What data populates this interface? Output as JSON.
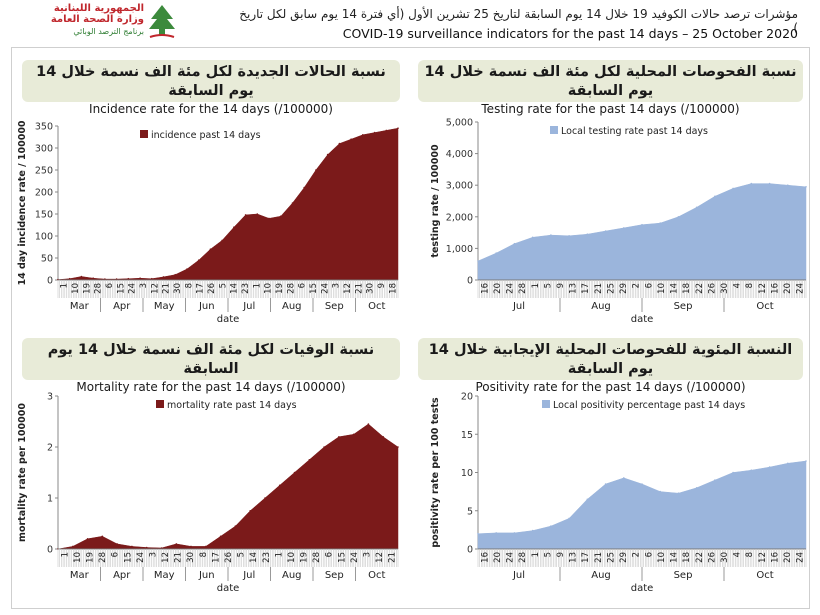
{
  "header": {
    "logo_line1": "الجمهورية اللبنانية",
    "logo_line2": "وزارة الصحة العامة",
    "logo_line3": "برنامج الترصد الوبائي",
    "title_ar": "مؤشرات ترصد حالات الكوفيد 19 خلال 14 يوم السابقة لتاريخ 25 تشرين الأول (أي فترة 14 يوم سابق لكل تاريخ )",
    "title_en": "COVID-19 surveillance indicators for the past 14 days – 25 October 2020"
  },
  "panels": {
    "incidence": {
      "title_ar": "نسبة الحالات الجديدة لكل مئة الف نسمة خلال 14 يوم السابقة",
      "title_en": "Incidence rate for the 14 days  (/100000)"
    },
    "testing": {
      "title_ar": "نسبة الفحوصات المحلية لكل مئة الف نسمة خلال 14 يوم السابقة",
      "title_en": "Testing rate for the past 14 days (/100000)"
    },
    "mortality": {
      "title_ar": "نسبة الوفيات لكل مئة الف نسمة خلال 14 يوم السابقة",
      "title_en": "Mortality rate for the past 14 days (/100000)"
    },
    "positivity": {
      "title_ar": "النسبة المئوية للفحوصات المحلية الإيجابية خلال 14 يوم السابقة",
      "title_en": "Positivity rate for the past 14 days (/100000)"
    }
  },
  "chart_data": [
    {
      "id": "incidence",
      "type": "area",
      "color": "#7b1a1a",
      "ylabel": "14 day incidence rate / 100000",
      "xlabel": "date",
      "legend": "incidence past 14 days",
      "legend_position": "top-left",
      "ylim": [
        0,
        350
      ],
      "yticks": [
        "0",
        "50",
        "100",
        "150",
        "200",
        "250",
        "300",
        "350"
      ],
      "tick_labels": [
        "1",
        "10",
        "19",
        "28",
        "6",
        "15",
        "24",
        "3",
        "12",
        "21",
        "30",
        "8",
        "17",
        "26",
        "5",
        "14",
        "23",
        "1",
        "10",
        "19",
        "28",
        "6",
        "15",
        "24",
        "3",
        "12",
        "21",
        "30",
        "9",
        "18"
      ],
      "months": [
        "Mar",
        "Apr",
        "May",
        "Jun",
        "Jul",
        "Aug",
        "Sep",
        "Oct"
      ],
      "x": [
        "Mar 1",
        "Mar 15",
        "Mar 28",
        "Apr 10",
        "Apr 24",
        "May 8",
        "May 22",
        "Jun 5",
        "Jun 19",
        "Jul 1",
        "Jul 10",
        "Jul 20",
        "Jul 28",
        "Aug 5",
        "Aug 10",
        "Aug 15",
        "Aug 20",
        "Aug 25",
        "Aug 31",
        "Sep 5",
        "Sep 10",
        "Sep 15",
        "Sep 20",
        "Sep 25",
        "Oct 1",
        "Oct 5",
        "Oct 10",
        "Oct 15",
        "Oct 20",
        "Oct 25"
      ],
      "values": [
        1,
        3,
        8,
        4,
        2,
        2,
        3,
        4,
        3,
        7,
        12,
        25,
        45,
        70,
        90,
        120,
        148,
        150,
        140,
        145,
        175,
        210,
        250,
        285,
        310,
        320,
        330,
        335,
        340,
        345
      ]
    },
    {
      "id": "testing",
      "type": "area",
      "color": "#9bb5dc",
      "ylabel": "testing rate / 100000",
      "xlabel": "date",
      "legend": "Local testing rate past 14 days",
      "legend_position": "top-left",
      "ylim": [
        0,
        5000
      ],
      "yticks": [
        "0",
        "1,000",
        "2,000",
        "3,000",
        "4,000",
        "5,000"
      ],
      "tick_labels": [
        "16",
        "20",
        "24",
        "28",
        "1",
        "5",
        "9",
        "13",
        "17",
        "21",
        "25",
        "29",
        "2",
        "6",
        "10",
        "14",
        "18",
        "22",
        "26",
        "30",
        "4",
        "8",
        "12",
        "16",
        "20",
        "24"
      ],
      "months": [
        "Jul",
        "Aug",
        "Sep",
        "Oct"
      ],
      "x": [
        "Jul 16",
        "Jul 22",
        "Jul 28",
        "Aug 3",
        "Aug 9",
        "Aug 15",
        "Aug 21",
        "Aug 27",
        "Sep 2",
        "Sep 8",
        "Sep 14",
        "Sep 20",
        "Sep 26",
        "Oct 2",
        "Oct 8",
        "Oct 12",
        "Oct 16",
        "Oct 20",
        "Oct 24"
      ],
      "values": [
        600,
        850,
        1150,
        1350,
        1420,
        1400,
        1450,
        1550,
        1650,
        1750,
        1800,
        2000,
        2300,
        2650,
        2900,
        3050,
        3050,
        3000,
        2950
      ]
    },
    {
      "id": "mortality",
      "type": "area",
      "color": "#7b1a1a",
      "ylabel": "mortality rate per 100000",
      "xlabel": "date",
      "legend": "mortality rate past 14 days",
      "legend_position": "top-left",
      "ylim": [
        0,
        3
      ],
      "yticks": [
        "0",
        "1",
        "2",
        "3"
      ],
      "tick_labels": [
        "1",
        "10",
        "19",
        "28",
        "6",
        "15",
        "24",
        "3",
        "12",
        "21",
        "30",
        "8",
        "17",
        "26",
        "5",
        "14",
        "23",
        "1",
        "10",
        "19",
        "28",
        "6",
        "15",
        "24",
        "3",
        "12",
        "21"
      ],
      "months": [
        "Mar",
        "Apr",
        "May",
        "Jun",
        "Jul",
        "Aug",
        "Sep",
        "Oct"
      ],
      "x": [
        "Mar 1",
        "Mar 20",
        "Mar 28",
        "Apr 2",
        "Apr 10",
        "Apr 20",
        "May 5",
        "May 20",
        "Jun 5",
        "Jun 15",
        "Jul 1",
        "Jul 15",
        "Jul 25",
        "Aug 5",
        "Aug 15",
        "Aug 25",
        "Sep 5",
        "Sep 15",
        "Sep 25",
        "Oct 1",
        "Oct 8",
        "Oct 13",
        "Oct 18",
        "Oct 25"
      ],
      "values": [
        0,
        0.05,
        0.2,
        0.25,
        0.1,
        0.05,
        0.03,
        0.02,
        0.1,
        0.05,
        0.05,
        0.25,
        0.45,
        0.75,
        1.0,
        1.25,
        1.5,
        1.75,
        2.0,
        2.2,
        2.25,
        2.45,
        2.2,
        2.0
      ]
    },
    {
      "id": "positivity",
      "type": "area",
      "color": "#9bb5dc",
      "ylabel": "positivity rate per 100 tests",
      "xlabel": "date",
      "legend": "Local positivity percentage past 14 days",
      "legend_position": "top-left",
      "ylim": [
        0,
        20
      ],
      "yticks": [
        "0",
        "5",
        "10",
        "15",
        "20"
      ],
      "tick_labels": [
        "16",
        "20",
        "24",
        "28",
        "1",
        "5",
        "9",
        "13",
        "17",
        "21",
        "25",
        "29",
        "2",
        "6",
        "10",
        "14",
        "18",
        "22",
        "26",
        "30",
        "4",
        "8",
        "12",
        "16",
        "20",
        "24"
      ],
      "months": [
        "Jul",
        "Aug",
        "Sep",
        "Oct"
      ],
      "x": [
        "Jul 16",
        "Jul 22",
        "Jul 28",
        "Aug 3",
        "Aug 9",
        "Aug 15",
        "Aug 21",
        "Aug 27",
        "Aug 31",
        "Sep 4",
        "Sep 8",
        "Sep 14",
        "Sep 20",
        "Sep 26",
        "Oct 2",
        "Oct 8",
        "Oct 14",
        "Oct 20",
        "Oct 24"
      ],
      "values": [
        2.0,
        2.1,
        2.1,
        2.4,
        3.0,
        4.0,
        6.5,
        8.5,
        9.3,
        8.5,
        7.5,
        7.3,
        8.0,
        9.0,
        10.0,
        10.3,
        10.7,
        11.2,
        11.5
      ]
    }
  ]
}
